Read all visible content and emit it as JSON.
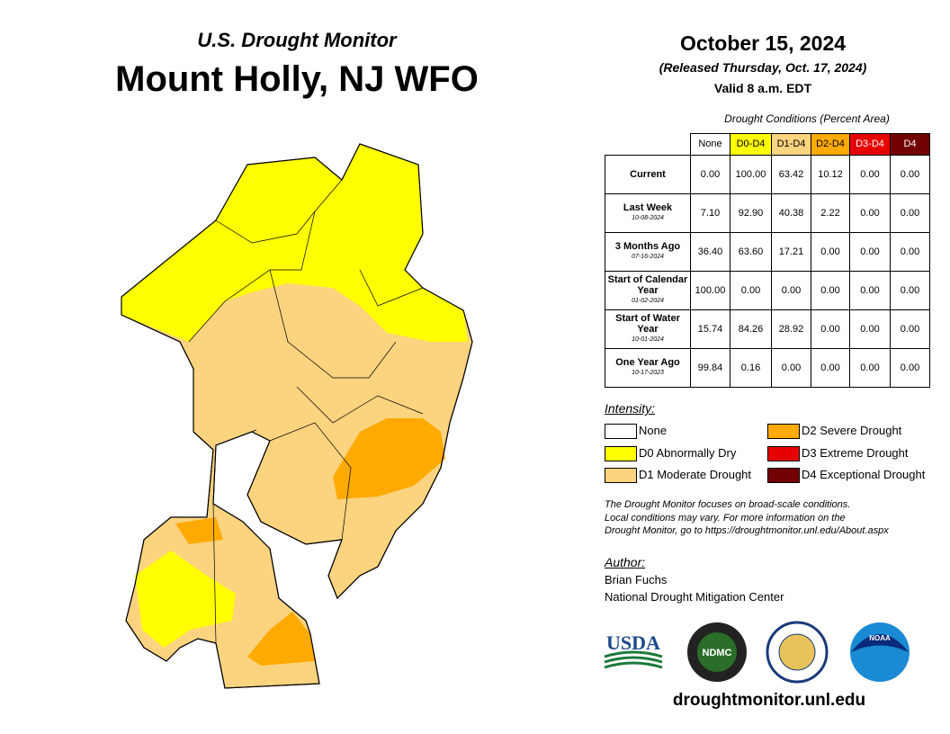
{
  "header": {
    "subtitle": "U.S. Drought Monitor",
    "title": "Mount Holly, NJ WFO",
    "date": "October 15, 2024",
    "released": "(Released Thursday, Oct. 17, 2024)",
    "valid": "Valid 8 a.m. EDT"
  },
  "table": {
    "caption": "Drought Conditions (Percent Area)",
    "columns": [
      "None",
      "D0-D4",
      "D1-D4",
      "D2-D4",
      "D3-D4",
      "D4"
    ],
    "rows": [
      {
        "label": "Current",
        "values": [
          "0.00",
          "100.00",
          "63.42",
          "10.12",
          "0.00",
          "0.00"
        ]
      },
      {
        "label": "Last Week",
        "date": "10-08-2024",
        "values": [
          "7.10",
          "92.90",
          "40.38",
          "2.22",
          "0.00",
          "0.00"
        ]
      },
      {
        "label": "3 Months Ago",
        "date": "07-16-2024",
        "values": [
          "36.40",
          "63.60",
          "17.21",
          "0.00",
          "0.00",
          "0.00"
        ]
      },
      {
        "label": "Start of Calendar Year",
        "date": "01-02-2024",
        "values": [
          "100.00",
          "0.00",
          "0.00",
          "0.00",
          "0.00",
          "0.00"
        ]
      },
      {
        "label": "Start of Water Year",
        "date": "10-01-2024",
        "values": [
          "15.74",
          "84.26",
          "28.92",
          "0.00",
          "0.00",
          "0.00"
        ]
      },
      {
        "label": "One Year Ago",
        "date": "10-17-2023",
        "values": [
          "99.84",
          "0.16",
          "0.00",
          "0.00",
          "0.00",
          "0.00"
        ]
      }
    ]
  },
  "legend": {
    "title": "Intensity:",
    "items": [
      {
        "label": "None",
        "color": "#ffffff"
      },
      {
        "label": "D0 Abnormally Dry",
        "color": "#ffff00"
      },
      {
        "label": "D1 Moderate Drought",
        "color": "#fcd37f"
      },
      {
        "label": "D2 Severe Drought",
        "color": "#ffaa00"
      },
      {
        "label": "D3 Extreme Drought",
        "color": "#e60000"
      },
      {
        "label": "D4 Exceptional Drought",
        "color": "#730000"
      }
    ]
  },
  "note": [
    "The Drought Monitor focuses on broad-scale conditions.",
    "Local conditions may vary. For more information on the",
    "Drought Monitor, go to https://droughtmonitor.unl.edu/About.aspx"
  ],
  "author": {
    "label": "Author:",
    "name": "Brian Fuchs",
    "org": "National Drought Mitigation Center"
  },
  "logos": {
    "usda": "USDA",
    "ndmc": "NDMC",
    "noaa": "NOAA"
  },
  "url": "droughtmonitor.unl.edu"
}
